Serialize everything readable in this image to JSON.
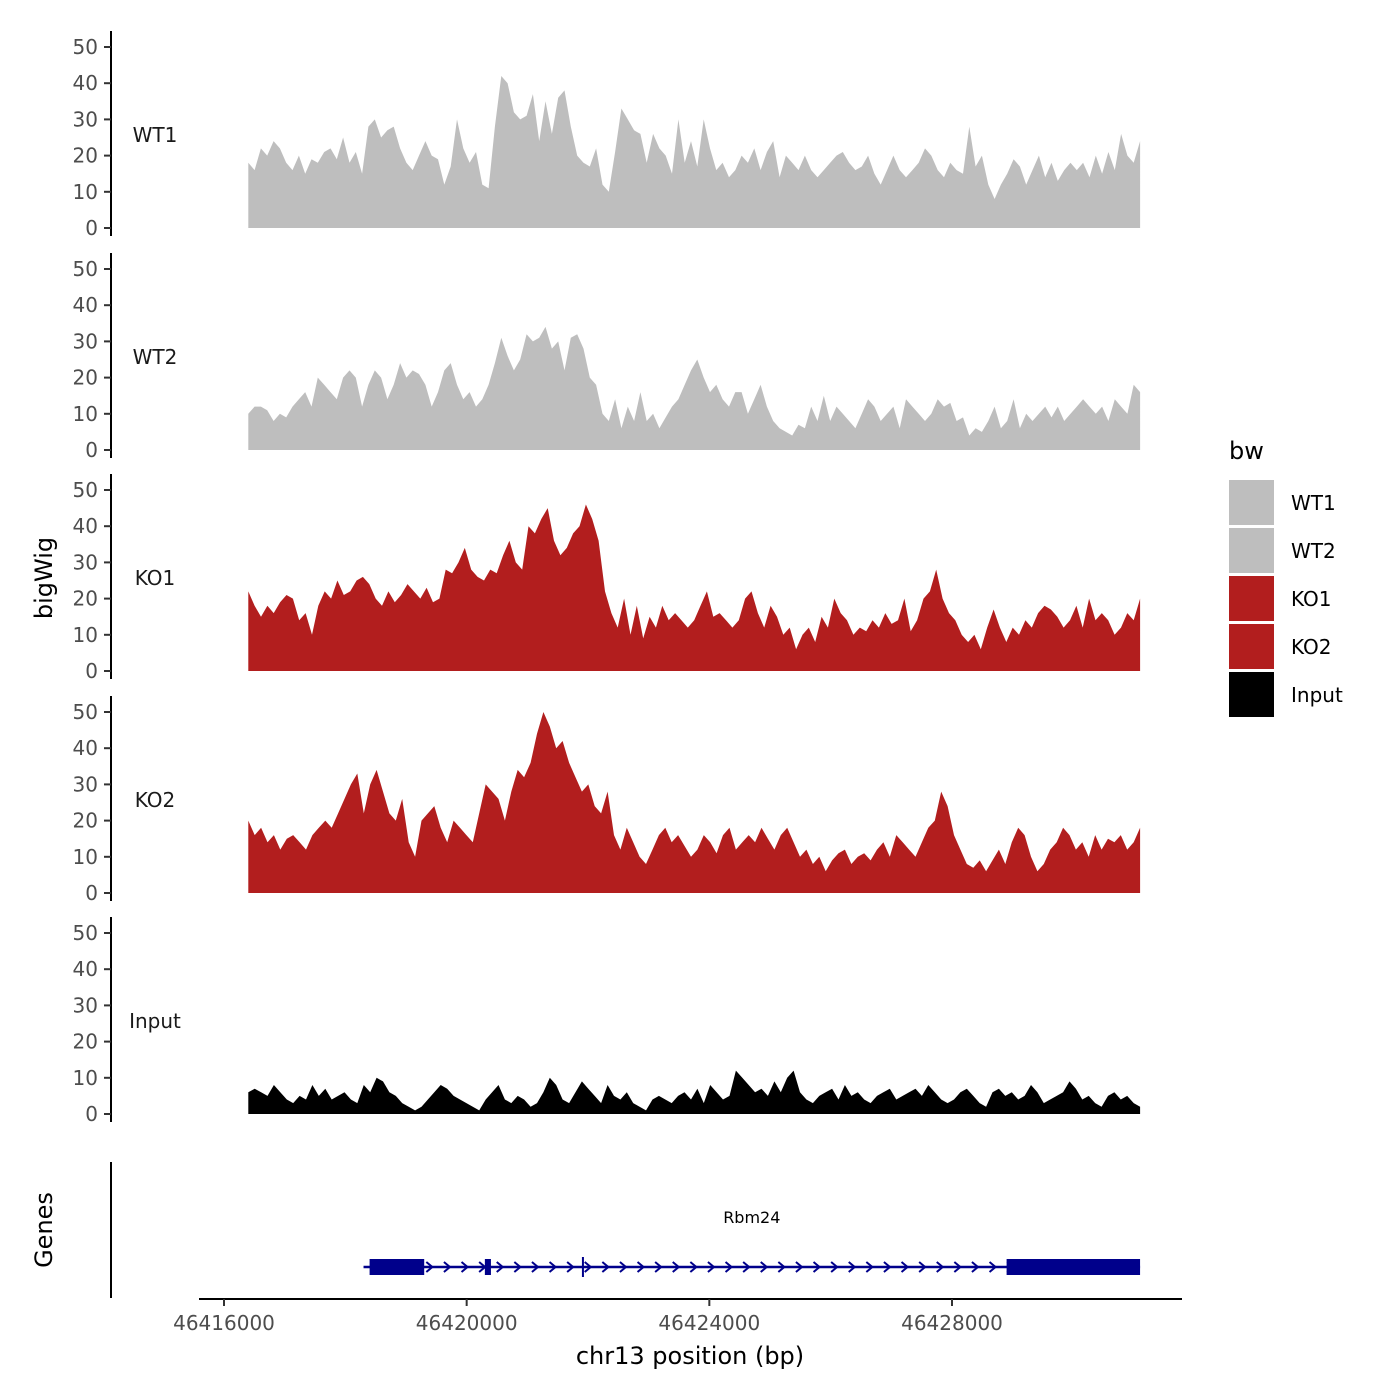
{
  "chart_data": {
    "type": "area",
    "ylabel": "bigWig",
    "xlabel": "chr13 position (bp)",
    "ylim": [
      0,
      52
    ],
    "yticks": [
      0,
      10,
      20,
      30,
      40,
      50
    ],
    "xlim": [
      46416000,
      46431600
    ],
    "xticks": [
      46416000,
      46420000,
      46424000,
      46428000
    ],
    "x_range": [
      46416400,
      46431100
    ],
    "legend": {
      "title": "bw",
      "position": "right",
      "entries": [
        {
          "label": "WT1",
          "color": "#bebebe"
        },
        {
          "label": "WT2",
          "color": "#bebebe"
        },
        {
          "label": "KO1",
          "color": "#b21e1e"
        },
        {
          "label": "KO2",
          "color": "#b21e1e"
        },
        {
          "label": "Input",
          "color": "#000000"
        }
      ]
    },
    "tracks": [
      {
        "name": "WT1",
        "color": "#bebebe",
        "values": [
          18,
          16,
          22,
          20,
          24,
          22,
          18,
          16,
          20,
          15,
          19,
          18,
          21,
          22,
          19,
          25,
          18,
          21,
          15,
          28,
          30,
          25,
          27,
          28,
          22,
          18,
          16,
          20,
          24,
          20,
          19,
          12,
          17,
          30,
          22,
          18,
          21,
          12,
          11,
          28,
          42,
          40,
          32,
          30,
          31,
          37,
          24,
          35,
          26,
          36,
          38,
          28,
          20,
          18,
          17,
          22,
          12,
          10,
          21,
          33,
          30,
          27,
          26,
          18,
          26,
          22,
          20,
          15,
          30,
          18,
          24,
          17,
          30,
          22,
          16,
          18,
          14,
          16,
          20,
          18,
          22,
          16,
          21,
          24,
          14,
          20,
          18,
          16,
          20,
          16,
          14,
          16,
          18,
          20,
          21,
          18,
          16,
          17,
          20,
          15,
          12,
          16,
          20,
          16,
          14,
          16,
          18,
          22,
          20,
          16,
          14,
          18,
          16,
          15,
          28,
          17,
          20,
          12,
          8,
          12,
          15,
          19,
          17,
          12,
          16,
          20,
          14,
          18,
          13,
          16,
          18,
          16,
          18,
          14,
          20,
          15,
          21,
          16,
          26,
          20,
          18,
          24
        ]
      },
      {
        "name": "WT2",
        "color": "#bebebe",
        "values": [
          10,
          12,
          12,
          11,
          8,
          10,
          9,
          12,
          14,
          16,
          12,
          20,
          18,
          16,
          14,
          20,
          22,
          20,
          12,
          18,
          22,
          20,
          14,
          18,
          24,
          20,
          22,
          21,
          18,
          12,
          16,
          22,
          24,
          18,
          14,
          16,
          12,
          14,
          18,
          24,
          31,
          26,
          22,
          25,
          32,
          30,
          31,
          34,
          28,
          30,
          22,
          31,
          32,
          28,
          20,
          18,
          10,
          8,
          14,
          6,
          12,
          8,
          16,
          8,
          10,
          6,
          9,
          12,
          14,
          18,
          22,
          25,
          20,
          16,
          18,
          14,
          12,
          16,
          16,
          10,
          14,
          18,
          12,
          8,
          6,
          5,
          4,
          7,
          6,
          12,
          8,
          15,
          8,
          12,
          10,
          8,
          6,
          10,
          14,
          12,
          8,
          10,
          12,
          6,
          14,
          12,
          10,
          8,
          10,
          14,
          12,
          13,
          8,
          9,
          4,
          6,
          5,
          8,
          12,
          6,
          8,
          14,
          6,
          10,
          8,
          10,
          12,
          9,
          12,
          8,
          10,
          12,
          14,
          12,
          10,
          12,
          8,
          14,
          12,
          10,
          18,
          16
        ]
      },
      {
        "name": "KO1",
        "color": "#b21e1e",
        "values": [
          22,
          18,
          15,
          18,
          16,
          19,
          21,
          20,
          14,
          16,
          10,
          18,
          22,
          20,
          25,
          21,
          22,
          25,
          26,
          24,
          20,
          18,
          22,
          19,
          21,
          24,
          22,
          20,
          23,
          19,
          20,
          28,
          27,
          30,
          34,
          28,
          26,
          25,
          28,
          27,
          32,
          36,
          30,
          28,
          40,
          38,
          42,
          45,
          36,
          32,
          34,
          38,
          40,
          46,
          42,
          36,
          22,
          16,
          12,
          20,
          10,
          18,
          9,
          15,
          12,
          18,
          14,
          16,
          14,
          12,
          14,
          18,
          22,
          15,
          16,
          14,
          12,
          14,
          20,
          22,
          16,
          12,
          18,
          15,
          10,
          12,
          6,
          10,
          12,
          8,
          15,
          12,
          20,
          16,
          14,
          10,
          12,
          11,
          14,
          12,
          16,
          13,
          14,
          20,
          11,
          14,
          20,
          22,
          28,
          20,
          16,
          14,
          10,
          8,
          10,
          6,
          12,
          17,
          12,
          8,
          12,
          10,
          14,
          12,
          16,
          18,
          17,
          15,
          12,
          14,
          18,
          12,
          20,
          14,
          16,
          14,
          10,
          12,
          16,
          14,
          20
        ]
      },
      {
        "name": "KO2",
        "color": "#b21e1e",
        "values": [
          20,
          16,
          18,
          14,
          16,
          12,
          15,
          16,
          14,
          12,
          16,
          18,
          20,
          18,
          22,
          26,
          30,
          33,
          22,
          30,
          34,
          28,
          22,
          20,
          26,
          14,
          10,
          20,
          22,
          24,
          18,
          14,
          20,
          18,
          16,
          14,
          22,
          30,
          28,
          26,
          20,
          28,
          34,
          32,
          36,
          44,
          50,
          46,
          40,
          42,
          36,
          32,
          28,
          30,
          24,
          22,
          28,
          16,
          12,
          18,
          14,
          10,
          8,
          12,
          16,
          18,
          14,
          16,
          13,
          10,
          12,
          16,
          14,
          11,
          16,
          18,
          12,
          14,
          16,
          14,
          18,
          15,
          12,
          16,
          18,
          14,
          10,
          12,
          8,
          10,
          6,
          9,
          11,
          12,
          8,
          10,
          11,
          9,
          12,
          14,
          10,
          16,
          14,
          12,
          10,
          14,
          18,
          20,
          28,
          24,
          16,
          12,
          8,
          7,
          9,
          6,
          9,
          12,
          8,
          14,
          18,
          16,
          10,
          6,
          8,
          12,
          14,
          18,
          16,
          12,
          14,
          10,
          16,
          12,
          15,
          14,
          16,
          12,
          14,
          18
        ]
      },
      {
        "name": "Input",
        "color": "#000000",
        "values": [
          6,
          7,
          6,
          5,
          8,
          6,
          4,
          3,
          5,
          4,
          8,
          5,
          7,
          4,
          5,
          6,
          4,
          3,
          8,
          6,
          10,
          9,
          6,
          5,
          3,
          2,
          1,
          2,
          4,
          6,
          8,
          7,
          5,
          4,
          3,
          2,
          1,
          4,
          6,
          8,
          4,
          3,
          5,
          4,
          2,
          3,
          6,
          10,
          8,
          4,
          3,
          6,
          9,
          7,
          5,
          3,
          8,
          5,
          4,
          6,
          3,
          2,
          1,
          4,
          5,
          4,
          3,
          5,
          6,
          4,
          7,
          3,
          8,
          6,
          4,
          5,
          12,
          10,
          8,
          6,
          7,
          5,
          9,
          6,
          10,
          12,
          6,
          4,
          3,
          5,
          6,
          7,
          4,
          8,
          5,
          6,
          4,
          3,
          5,
          6,
          7,
          4,
          5,
          6,
          7,
          5,
          8,
          6,
          4,
          3,
          4,
          6,
          7,
          5,
          3,
          2,
          6,
          7,
          5,
          6,
          4,
          5,
          8,
          6,
          3,
          4,
          5,
          6,
          9,
          7,
          4,
          5,
          3,
          2,
          5,
          6,
          4,
          5,
          3,
          2
        ]
      }
    ],
    "gene": {
      "name": "Rbm24",
      "color": "#00008b",
      "strand": "+",
      "start": 46418300,
      "end": 46431100,
      "exons": [
        [
          46418400,
          46419300
        ],
        [
          46420300,
          46420400
        ],
        [
          46421900,
          46421930
        ],
        [
          46428900,
          46431100
        ]
      ]
    },
    "panel_title": "Genes"
  }
}
